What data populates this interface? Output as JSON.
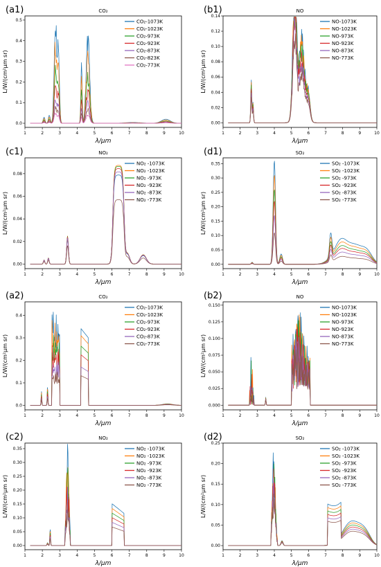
{
  "figure": {
    "rows": 4,
    "cols": 2
  },
  "chart_data": [
    {
      "id": "a1",
      "panel_label": "(a1)",
      "title": "CO₂",
      "type": "line",
      "xlabel": "λ/μm",
      "ylabel": "L/W/(cm²μm sr)",
      "xlim": [
        1,
        10
      ],
      "ylim": [
        -0.02,
        0.52
      ],
      "xticks": [
        "1",
        "2",
        "3",
        "4",
        "5",
        "6",
        "7",
        "8",
        "9",
        "10"
      ],
      "yticks": [
        "0.0",
        "0.1",
        "0.2",
        "0.3",
        "0.4",
        "0.5"
      ],
      "ytick_values": [
        0,
        0.1,
        0.2,
        0.3,
        0.4,
        0.5
      ],
      "legend_position": "top-right",
      "shape": "co2_smooth",
      "series": [
        {
          "name": "CO₂-1073K",
          "color": "#1f77b4",
          "peak": 0.49
        },
        {
          "name": "CO₂-1023K",
          "color": "#ff7f0e",
          "peak": 0.38
        },
        {
          "name": "CO₂-973K",
          "color": "#2ca02c",
          "peak": 0.27
        },
        {
          "name": "CO₂-923K",
          "color": "#d62728",
          "peak": 0.19
        },
        {
          "name": "CO₂-873K",
          "color": "#9467bd",
          "peak": 0.12
        },
        {
          "name": "CO₂-823K",
          "color": "#8c564b",
          "peak": 0.08
        },
        {
          "name": "CO₂-773K",
          "color": "#e377c2",
          "peak": 0.05
        }
      ]
    },
    {
      "id": "b1",
      "panel_label": "(b1)",
      "title": "NO",
      "type": "line",
      "xlabel": "λ/μm",
      "ylabel": "L/W/(cm²μm sr)",
      "xlim": [
        1,
        10
      ],
      "ylim": [
        -0.006,
        0.14
      ],
      "xticks": [
        "1",
        "2",
        "3",
        "4",
        "5",
        "6",
        "7",
        "8",
        "9",
        "10"
      ],
      "yticks": [
        "0.00",
        "0.02",
        "0.04",
        "0.06",
        "0.08",
        "0.10",
        "0.12",
        "0.14"
      ],
      "ytick_values": [
        0,
        0.02,
        0.04,
        0.06,
        0.08,
        0.1,
        0.12,
        0.14
      ],
      "legend_position": "top-right",
      "shape": "no_smooth",
      "series": [
        {
          "name": "NO-1073K",
          "color": "#1f77b4",
          "peak": 0.134
        },
        {
          "name": "NO-1023K",
          "color": "#ff7f0e",
          "peak": 0.127
        },
        {
          "name": "NO-973K",
          "color": "#2ca02c",
          "peak": 0.118
        },
        {
          "name": "NO-923K",
          "color": "#d62728",
          "peak": 0.106
        },
        {
          "name": "NO-873K",
          "color": "#9467bd",
          "peak": 0.094
        },
        {
          "name": "NO-773K",
          "color": "#8c564b",
          "peak": 0.08
        }
      ]
    },
    {
      "id": "c1",
      "panel_label": "(c1)",
      "title": "NO₂",
      "type": "line",
      "xlabel": "λ/μm",
      "ylabel": "L/W/(cm²μm sr)",
      "xlim": [
        1,
        10
      ],
      "ylim": [
        -0.004,
        0.094
      ],
      "xticks": [
        "1",
        "2",
        "3",
        "4",
        "5",
        "6",
        "7",
        "8",
        "9",
        "10"
      ],
      "yticks": [
        "0.00",
        "0.02",
        "0.04",
        "0.06",
        "0.08"
      ],
      "ytick_values": [
        0,
        0.02,
        0.04,
        0.06,
        0.08
      ],
      "legend_position": "top-right",
      "shape": "no2_smooth",
      "series": [
        {
          "name": "NO₂ -1073K",
          "color": "#1f77b4",
          "peak": 0.083
        },
        {
          "name": "NO₂ -1023K",
          "color": "#ff7f0e",
          "peak": 0.092
        },
        {
          "name": "NO₂ -973K",
          "color": "#2ca02c",
          "peak": 0.091
        },
        {
          "name": "NO₂ -923K",
          "color": "#d62728",
          "peak": 0.089
        },
        {
          "name": "NO₂ -873K",
          "color": "#9467bd",
          "peak": 0.086
        },
        {
          "name": "NO₂ -773K",
          "color": "#8c564b",
          "peak": 0.06
        }
      ]
    },
    {
      "id": "d1",
      "panel_label": "(d1)",
      "title": "SO₂",
      "type": "line",
      "xlabel": "λ/μm",
      "ylabel": "L/W/(cm²μm sr)",
      "xlim": [
        1,
        10
      ],
      "ylim": [
        -0.015,
        0.37
      ],
      "xticks": [
        "1",
        "2",
        "3",
        "4",
        "5",
        "6",
        "7",
        "8",
        "9",
        "10"
      ],
      "yticks": [
        "0.00",
        "0.05",
        "0.10",
        "0.15",
        "0.20",
        "0.25",
        "0.30",
        "0.35"
      ],
      "ytick_values": [
        0,
        0.05,
        0.1,
        0.15,
        0.2,
        0.25,
        0.3,
        0.35
      ],
      "legend_position": "top-right",
      "shape": "so2_smooth",
      "series": [
        {
          "name": "SO₂ -1073K",
          "color": "#1f77b4",
          "peak": 0.36
        },
        {
          "name": "SO₂ -1023K",
          "color": "#ff7f0e",
          "peak": 0.31
        },
        {
          "name": "SO₂ -973K",
          "color": "#2ca02c",
          "peak": 0.26
        },
        {
          "name": "SO₂ -923K",
          "color": "#d62728",
          "peak": 0.22
        },
        {
          "name": "SO₂ -873K",
          "color": "#9467bd",
          "peak": 0.17
        },
        {
          "name": "SO₂ -773K",
          "color": "#8c564b",
          "peak": 0.11
        }
      ]
    },
    {
      "id": "a2",
      "panel_label": "(a2)",
      "title": "CO₂",
      "type": "line",
      "xlabel": "λ/μm",
      "ylabel": "L/W/(cm²μm sr)",
      "xlim": [
        1,
        10
      ],
      "ylim": [
        -0.02,
        0.46
      ],
      "xticks": [
        "1",
        "2",
        "3",
        "4",
        "5",
        "6",
        "7",
        "8",
        "9",
        "10"
      ],
      "yticks": [
        "0.0",
        "0.1",
        "0.2",
        "0.3",
        "0.4"
      ],
      "ytick_values": [
        0,
        0.1,
        0.2,
        0.3,
        0.4
      ],
      "legend_position": "top-right",
      "shape": "co2_band",
      "series": [
        {
          "name": "CO₂-1073K",
          "color": "#1f77b4",
          "peak": 0.44
        },
        {
          "name": "CO₂-1023K",
          "color": "#ff7f0e",
          "peak": 0.4
        },
        {
          "name": "CO₂-973K",
          "color": "#2ca02c",
          "peak": 0.34
        },
        {
          "name": "CO₂-923K",
          "color": "#d62728",
          "peak": 0.29
        },
        {
          "name": "CO₂-873K",
          "color": "#9467bd",
          "peak": 0.22
        },
        {
          "name": "CO₂-773K",
          "color": "#8c564b",
          "peak": 0.17
        }
      ]
    },
    {
      "id": "b2",
      "panel_label": "(b2)",
      "title": "NO",
      "type": "line",
      "xlabel": "λ/μm",
      "ylabel": "L/W/(cm²μm sr)",
      "xlim": [
        1,
        10
      ],
      "ylim": [
        -0.007,
        0.155
      ],
      "xticks": [
        "1",
        "2",
        "3",
        "4",
        "5",
        "6",
        "7",
        "8",
        "9",
        "10"
      ],
      "yticks": [
        "0.000",
        "0.025",
        "0.050",
        "0.075",
        "0.100",
        "0.125",
        "0.150"
      ],
      "ytick_values": [
        0,
        0.025,
        0.05,
        0.075,
        0.1,
        0.125,
        0.15
      ],
      "legend_position": "top-right",
      "shape": "no_band",
      "series": [
        {
          "name": "NO-1073K",
          "color": "#1f77b4",
          "peak": 0.15
        },
        {
          "name": "NO-1023K",
          "color": "#ff7f0e",
          "peak": 0.14
        },
        {
          "name": "NO-973K",
          "color": "#2ca02c",
          "peak": 0.13
        },
        {
          "name": "NO-923K",
          "color": "#d62728",
          "peak": 0.12
        },
        {
          "name": "NO-873K",
          "color": "#9467bd",
          "peak": 0.11
        },
        {
          "name": "NO-773K",
          "color": "#8c564b",
          "peak": 0.1
        }
      ]
    },
    {
      "id": "c2",
      "panel_label": "(c2)",
      "title": "NO₂",
      "type": "line",
      "xlabel": "λ/μm",
      "ylabel": "L/W/(cm²μm sr)",
      "xlim": [
        1,
        10
      ],
      "ylim": [
        -0.015,
        0.37
      ],
      "xticks": [
        "1",
        "2",
        "3",
        "4",
        "5",
        "6",
        "7",
        "8",
        "9",
        "10"
      ],
      "yticks": [
        "0.00",
        "0.05",
        "0.10",
        "0.15",
        "0.20",
        "0.25",
        "0.30",
        "0.35"
      ],
      "ytick_values": [
        0,
        0.05,
        0.1,
        0.15,
        0.2,
        0.25,
        0.3,
        0.35
      ],
      "legend_position": "top-right",
      "shape": "no2_band",
      "series": [
        {
          "name": "NO₂ -1073K",
          "color": "#1f77b4",
          "peak": 0.36
        },
        {
          "name": "NO₂ -1023K",
          "color": "#ff7f0e",
          "peak": 0.32
        },
        {
          "name": "NO₂ -973K",
          "color": "#2ca02c",
          "peak": 0.28
        },
        {
          "name": "NO₂ -923K",
          "color": "#d62728",
          "peak": 0.24
        },
        {
          "name": "NO₂ -873K",
          "color": "#9467bd",
          "peak": 0.2
        },
        {
          "name": "NO₂ -773K",
          "color": "#8c564b",
          "peak": 0.16
        }
      ]
    },
    {
      "id": "d2",
      "panel_label": "(d2)",
      "title": "SO₂",
      "type": "line",
      "xlabel": "λ/μm",
      "ylabel": "L/W/(cm²μm sr)",
      "xlim": [
        1,
        10
      ],
      "ylim": [
        -0.01,
        0.25
      ],
      "xticks": [
        "1",
        "2",
        "3",
        "4",
        "5",
        "6",
        "7",
        "8",
        "9",
        "10"
      ],
      "yticks": [
        "0.00",
        "0.05",
        "0.10",
        "0.15",
        "0.20",
        "0.25"
      ],
      "ytick_values": [
        0,
        0.05,
        0.1,
        0.15,
        0.2,
        0.25
      ],
      "legend_position": "top-right",
      "shape": "so2_band",
      "series": [
        {
          "name": "SO₂ -1073K",
          "color": "#1f77b4",
          "peak": 0.24
        },
        {
          "name": "SO₂ -1023K",
          "color": "#ff7f0e",
          "peak": 0.22
        },
        {
          "name": "SO₂ -973K",
          "color": "#2ca02c",
          "peak": 0.2
        },
        {
          "name": "SO₂ -923K",
          "color": "#d62728",
          "peak": 0.18
        },
        {
          "name": "SO₂ -873K",
          "color": "#9467bd",
          "peak": 0.16
        },
        {
          "name": "SO₂ -773K",
          "color": "#8c564b",
          "peak": 0.14
        }
      ]
    }
  ]
}
